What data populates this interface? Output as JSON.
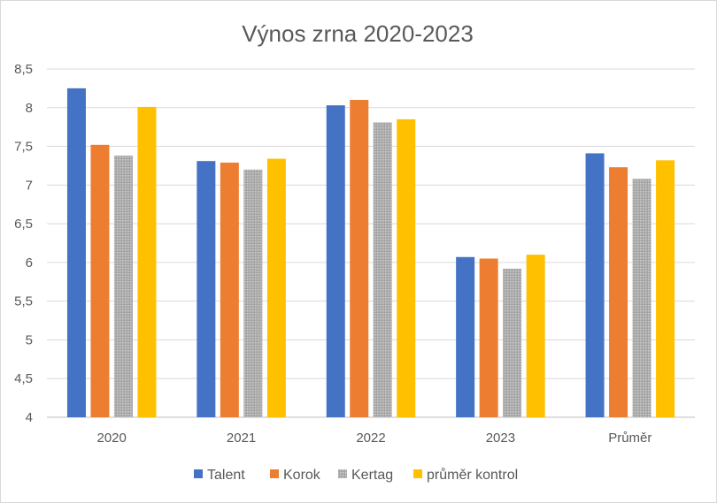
{
  "chart_data": {
    "type": "bar",
    "title": "Výnos zrna 2020-2023",
    "xlabel": "",
    "ylabel": "",
    "categories": [
      "2020",
      "2021",
      "2022",
      "2023",
      "Průměr"
    ],
    "ylim": [
      4,
      8.5
    ],
    "yticks": [
      "4",
      "4,5",
      "5",
      "5,5",
      "6",
      "6,5",
      "7",
      "7,5",
      "8",
      "8,5"
    ],
    "ytick_values": [
      4,
      4.5,
      5,
      5.5,
      6,
      6.5,
      7,
      7.5,
      8,
      8.5
    ],
    "grid": true,
    "legend_position": "bottom",
    "series": [
      {
        "name": "Talent",
        "color": "#4472c4",
        "values": [
          8.25,
          7.31,
          8.03,
          6.07,
          7.41
        ]
      },
      {
        "name": "Korok",
        "color": "#ed7d31",
        "values": [
          7.52,
          7.29,
          8.1,
          6.05,
          7.23
        ]
      },
      {
        "name": "Kertag",
        "color": "#a5a5a5",
        "pattern": "dotted",
        "values": [
          7.38,
          7.2,
          7.81,
          5.92,
          7.08
        ]
      },
      {
        "name": "průměr kontrol",
        "color": "#ffc000",
        "values": [
          8.01,
          7.34,
          7.85,
          6.1,
          7.32
        ]
      }
    ]
  }
}
